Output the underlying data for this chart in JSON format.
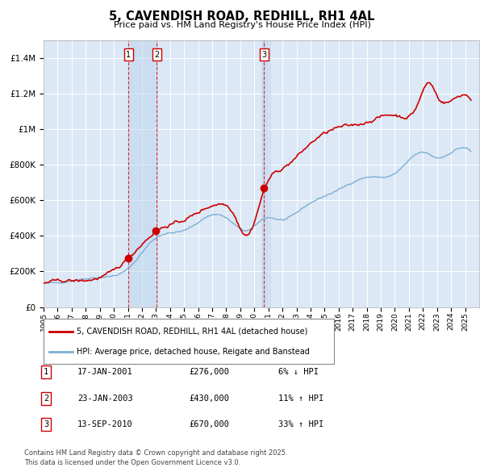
{
  "title": "5, CAVENDISH ROAD, REDHILL, RH1 4AL",
  "subtitle": "Price paid vs. HM Land Registry's House Price Index (HPI)",
  "plot_bg_color": "#dce8f5",
  "grid_color": "#ffffff",
  "hpi_color": "#7bafd4",
  "price_color": "#cc0000",
  "transactions": [
    {
      "date": "17-JAN-2001",
      "price": 276000,
      "label": "1",
      "pct": "6% ↓ HPI"
    },
    {
      "date": "23-JAN-2003",
      "price": 430000,
      "label": "2",
      "pct": "11% ↑ HPI"
    },
    {
      "date": "13-SEP-2010",
      "price": 670000,
      "label": "3",
      "pct": "33% ↑ HPI"
    }
  ],
  "legend_line1": "5, CAVENDISH ROAD, REDHILL, RH1 4AL (detached house)",
  "legend_line2": "HPI: Average price, detached house, Reigate and Banstead",
  "footer1": "Contains HM Land Registry data © Crown copyright and database right 2025.",
  "footer2": "This data is licensed under the Open Government Licence v3.0.",
  "ylim": [
    0,
    1500000
  ],
  "yticks": [
    0,
    200000,
    400000,
    600000,
    800000,
    1000000,
    1200000,
    1400000
  ],
  "ytick_labels": [
    "£0",
    "£200K",
    "£400K",
    "£600K",
    "£800K",
    "£1M",
    "£1.2M",
    "£1.4M"
  ],
  "start_year": 1995,
  "end_year": 2025
}
